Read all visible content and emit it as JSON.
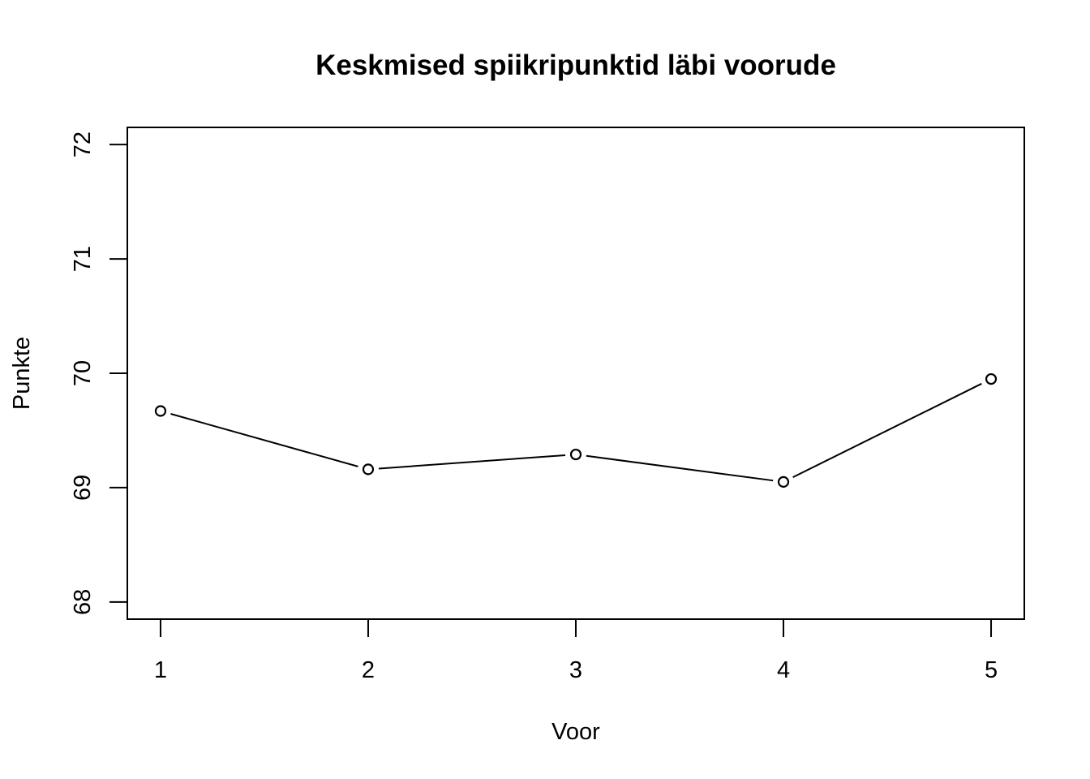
{
  "chart_data": {
    "type": "line",
    "title": "Keskmised spiikripunktid läbi voorude",
    "xlabel": "Voor",
    "ylabel": "Punkte",
    "x": [
      1,
      2,
      3,
      4,
      5
    ],
    "values": [
      69.67,
      69.16,
      69.29,
      69.05,
      69.95
    ],
    "xlim": [
      0.84,
      5.16
    ],
    "ylim": [
      67.85,
      72.15
    ],
    "x_ticks": [
      "1",
      "2",
      "3",
      "4",
      "5"
    ],
    "y_ticks": [
      "68",
      "69",
      "70",
      "71",
      "72"
    ],
    "marker": "open-circle",
    "line_color": "#000000",
    "grid": false,
    "legend": "none"
  }
}
